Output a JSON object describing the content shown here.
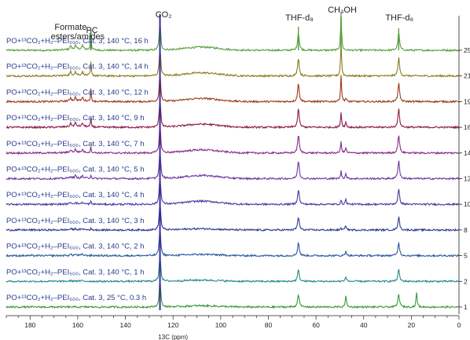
{
  "chart_data": {
    "type": "line",
    "xlabel": "13C (ppm)",
    "ylabel": "",
    "xlim": [
      190,
      0
    ],
    "x_reversed": true,
    "x_ticks": [
      180,
      160,
      140,
      120,
      100,
      80,
      60,
      40,
      20,
      0
    ],
    "right_ticks": [
      "25",
      "21",
      "19",
      "16",
      "14",
      "12",
      "10",
      "8",
      "5",
      "2",
      "1"
    ],
    "annotations": [
      {
        "text": "Formate",
        "x": 163
      },
      {
        "text": "esters/amides",
        "x": 160
      },
      {
        "text": "PC",
        "x": 154
      },
      {
        "text": "CO₂",
        "x": 124
      },
      {
        "text": "THF-d₈",
        "x": 67
      },
      {
        "text": "CH₃OH",
        "x": 49
      },
      {
        "text": "THF-d₈",
        "x": 25
      }
    ],
    "peaks_ppm": {
      "co2": 125.5,
      "thf_1": 67.4,
      "ch3oh": 49.5,
      "thf_2": 25.3,
      "pc": 154.5,
      "formate_esters_amides": [
        163,
        161,
        158
      ]
    },
    "series": [
      {
        "name": "PO+¹³CO₂+H₂–PEI₆₀₀, Cat. 3, 140 °C, 16 h",
        "color": "#5a9e3e",
        "pc": 0.75,
        "meoh": 1.0,
        "thf": 0.55,
        "formate": 0.35,
        "extra47": 0.0
      },
      {
        "name": "PO+¹³CO₂+H₂–PEI₆₀₀, Cat. 3, 140 °C, 14 h",
        "color": "#8a7a1e",
        "pc": 0.55,
        "meoh": 0.9,
        "thf": 0.55,
        "formate": 0.3,
        "extra47": 0.0
      },
      {
        "name": "PO+¹³CO₂+H₂–PEI₆₀₀, Cat. 3, 140 °C, 12 h",
        "color": "#9c3a1a",
        "pc": 0.5,
        "meoh": 0.7,
        "thf": 0.55,
        "formate": 0.3,
        "extra47": 0.2
      },
      {
        "name": "PO+¹³CO₂+H₂–PEI₆₀₀, Cat. 3, 140 °C, 9 h",
        "color": "#8e1a4a",
        "pc": 0.35,
        "meoh": 0.4,
        "thf": 0.55,
        "formate": 0.3,
        "extra47": 0.3
      },
      {
        "name": "PO+¹³CO₂+H₂–PEI₆₀₀, Cat. 3, 140 °C, 7 h",
        "color": "#8a2a8a",
        "pc": 0.25,
        "meoh": 0.3,
        "thf": 0.55,
        "formate": 0.25,
        "extra47": 0.3
      },
      {
        "name": "PO+¹³CO₂+H₂–PEI₆₀₀, Cat. 3, 140 °C, 5 h",
        "color": "#6a3aa0",
        "pc": 0.15,
        "meoh": 0.2,
        "thf": 0.55,
        "formate": 0.2,
        "extra47": 0.3
      },
      {
        "name": "PO+¹³CO₂+H₂–PEI₆₀₀, Cat. 3, 140 °C, 4 h",
        "color": "#4a3a9e",
        "pc": 0.1,
        "meoh": 0.1,
        "thf": 0.45,
        "formate": 0.15,
        "extra47": 0.3
      },
      {
        "name": "PO+¹³CO₂+H₂–PEI₆₀₀, Cat. 3, 140 °C, 3 h",
        "color": "#2a3a8e",
        "pc": 0.05,
        "meoh": 0.05,
        "thf": 0.4,
        "formate": 0.1,
        "extra47": 0.3
      },
      {
        "name": "PO+¹³CO₂+H₂–PEI₆₀₀, Cat. 3, 140 °C, 2 h",
        "color": "#2a5a9e",
        "pc": 0.0,
        "meoh": 0.0,
        "thf": 0.4,
        "formate": 0.1,
        "extra47": 0.3
      },
      {
        "name": "PO+¹³CO₂+H₂–PEI₆₀₀, Cat. 3, 140 °C, 1 h",
        "color": "#2a8a8a",
        "pc": 0.0,
        "meoh": 0.0,
        "thf": 0.35,
        "formate": 0.05,
        "extra47": 0.3
      },
      {
        "name": "PO+¹³CO₂+H₂–PEI₆₀₀, Cat. 3, 25 °C, 0.3 h",
        "color": "#3a9a3a",
        "pc": 0.0,
        "meoh": 0.0,
        "thf": 0.4,
        "formate": 0.0,
        "extra47": 0.7
      }
    ],
    "colors": {
      "label_text": "#2a3a8e",
      "co2_line": "#3a2a9e",
      "pc_line": "#3a8a3a",
      "axis": "#222222"
    },
    "grid": false,
    "legend": "inline-left"
  }
}
